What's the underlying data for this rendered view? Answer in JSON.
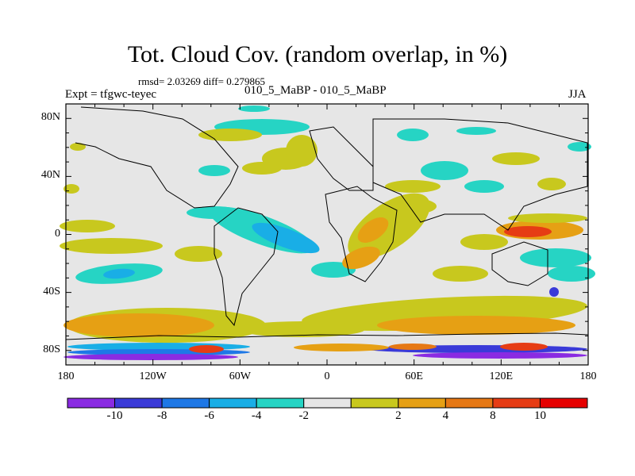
{
  "title": "Tot. Cloud Cov. (random overlap, in %)",
  "stats_text": "rmsd= 2.03269 diff= 0.279865",
  "experiment_label": "Expt = tfgwc-teyec",
  "center_label": "010_5_MaBP - 010_5_MaBP",
  "season_label": "JJA",
  "map": {
    "projection": "cylindrical-equidistant",
    "lon_range": [
      -180,
      180
    ],
    "lat_range": [
      -90,
      90
    ],
    "background_color": "#e6e6e6",
    "y_ticks": [
      {
        "label": "80N",
        "lat": 80
      },
      {
        "label": "40N",
        "lat": 40
      },
      {
        "label": "0",
        "lat": 0
      },
      {
        "label": "40S",
        "lat": -40
      },
      {
        "label": "80S",
        "lat": -80
      }
    ],
    "x_ticks": [
      {
        "label": "180",
        "lon": -180
      },
      {
        "label": "120W",
        "lon": -120
      },
      {
        "label": "60W",
        "lon": -60
      },
      {
        "label": "0",
        "lon": 0
      },
      {
        "label": "60E",
        "lon": 60
      },
      {
        "label": "120E",
        "lon": 120
      },
      {
        "label": "180",
        "lon": 180
      }
    ]
  },
  "colorbar": {
    "colors": [
      "#8a2be2",
      "#3a3ad8",
      "#1e78e6",
      "#19aee6",
      "#26d4c4",
      "#e6e6e6",
      "#c8c81e",
      "#e6a014",
      "#e67814",
      "#e63c14",
      "#e60000"
    ],
    "labels": [
      "-10",
      "-8",
      "-6",
      "-4",
      "-2",
      "2",
      "4",
      "8",
      "10"
    ]
  }
}
